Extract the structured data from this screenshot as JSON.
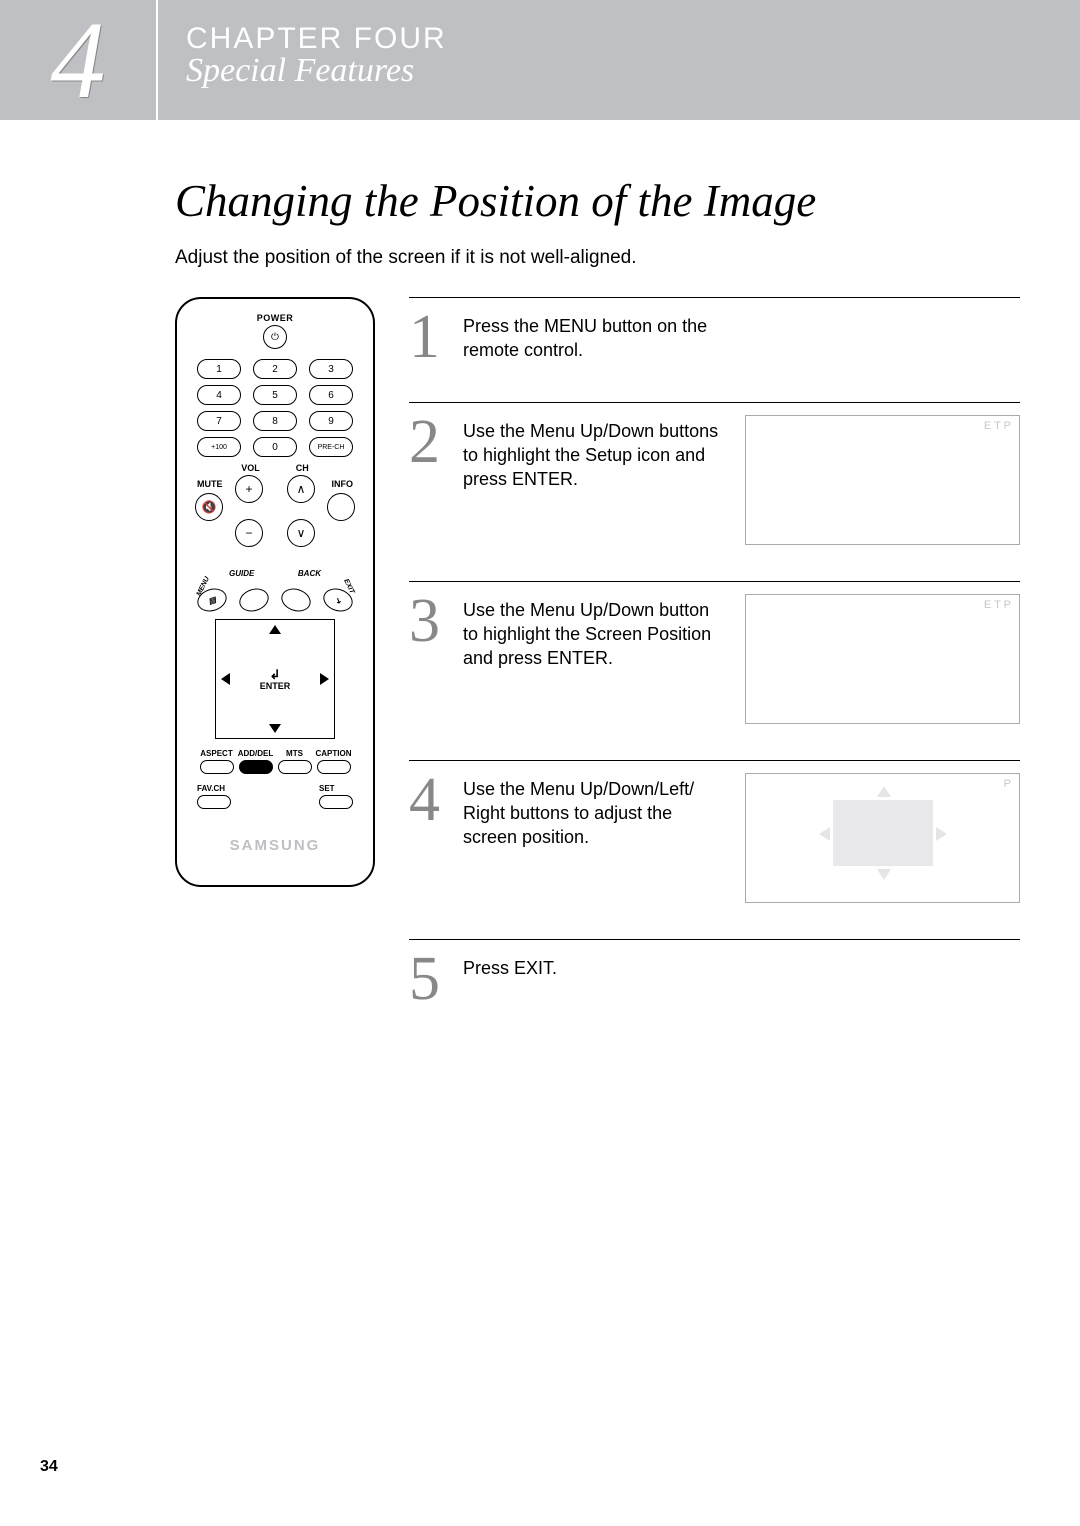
{
  "header": {
    "chapter_num": "4",
    "chapter_label": "CHAPTER FOUR",
    "subtitle": "Special Features"
  },
  "title": "Changing the Position of the Image",
  "intro": "Adjust the position of the screen if it is not well-aligned.",
  "remote": {
    "power_label": "POWER",
    "power_glyph": "⏻",
    "numpad": [
      "1",
      "2",
      "3",
      "4",
      "5",
      "6",
      "7",
      "8",
      "9",
      "+100",
      "0",
      "PRE-CH"
    ],
    "vol_label": "VOL",
    "ch_label": "CH",
    "mute_label": "MUTE",
    "info_label": "INFO",
    "mute_glyph": "🔇",
    "guide_label": "GUIDE",
    "back_label": "BACK",
    "menu_label": "MENU",
    "exit_label": "EXIT",
    "enter_label": "ENTER",
    "enter_glyph": "↲",
    "options": [
      "ASPECT",
      "ADD/DEL",
      "MTS",
      "CAPTION"
    ],
    "favch_label": "FAV.CH",
    "set_label": "SET",
    "brand": "SAMSUNG"
  },
  "steps": [
    {
      "num": "1",
      "text": "Press the MENU button on the remote control.",
      "screen": null
    },
    {
      "num": "2",
      "text": "Use the Menu Up/Down buttons to highlight the Setup icon and press ENTER.",
      "screen": "setup"
    },
    {
      "num": "3",
      "text": "Use the Menu Up/Down button to highlight the Screen Position and press ENTER.",
      "screen": "setup"
    },
    {
      "num": "4",
      "text": "Use the Menu Up/Down/Left/ Right buttons to adjust the screen position.",
      "screen": "position"
    },
    {
      "num": "5",
      "text": "Press EXIT.",
      "screen": null
    }
  ],
  "screen_labels": {
    "setup_hdr": "E T P",
    "pos_hdr": "P"
  },
  "page_num": "34",
  "colors": {
    "band": "#bfc0c4",
    "step_num": "#888888"
  }
}
